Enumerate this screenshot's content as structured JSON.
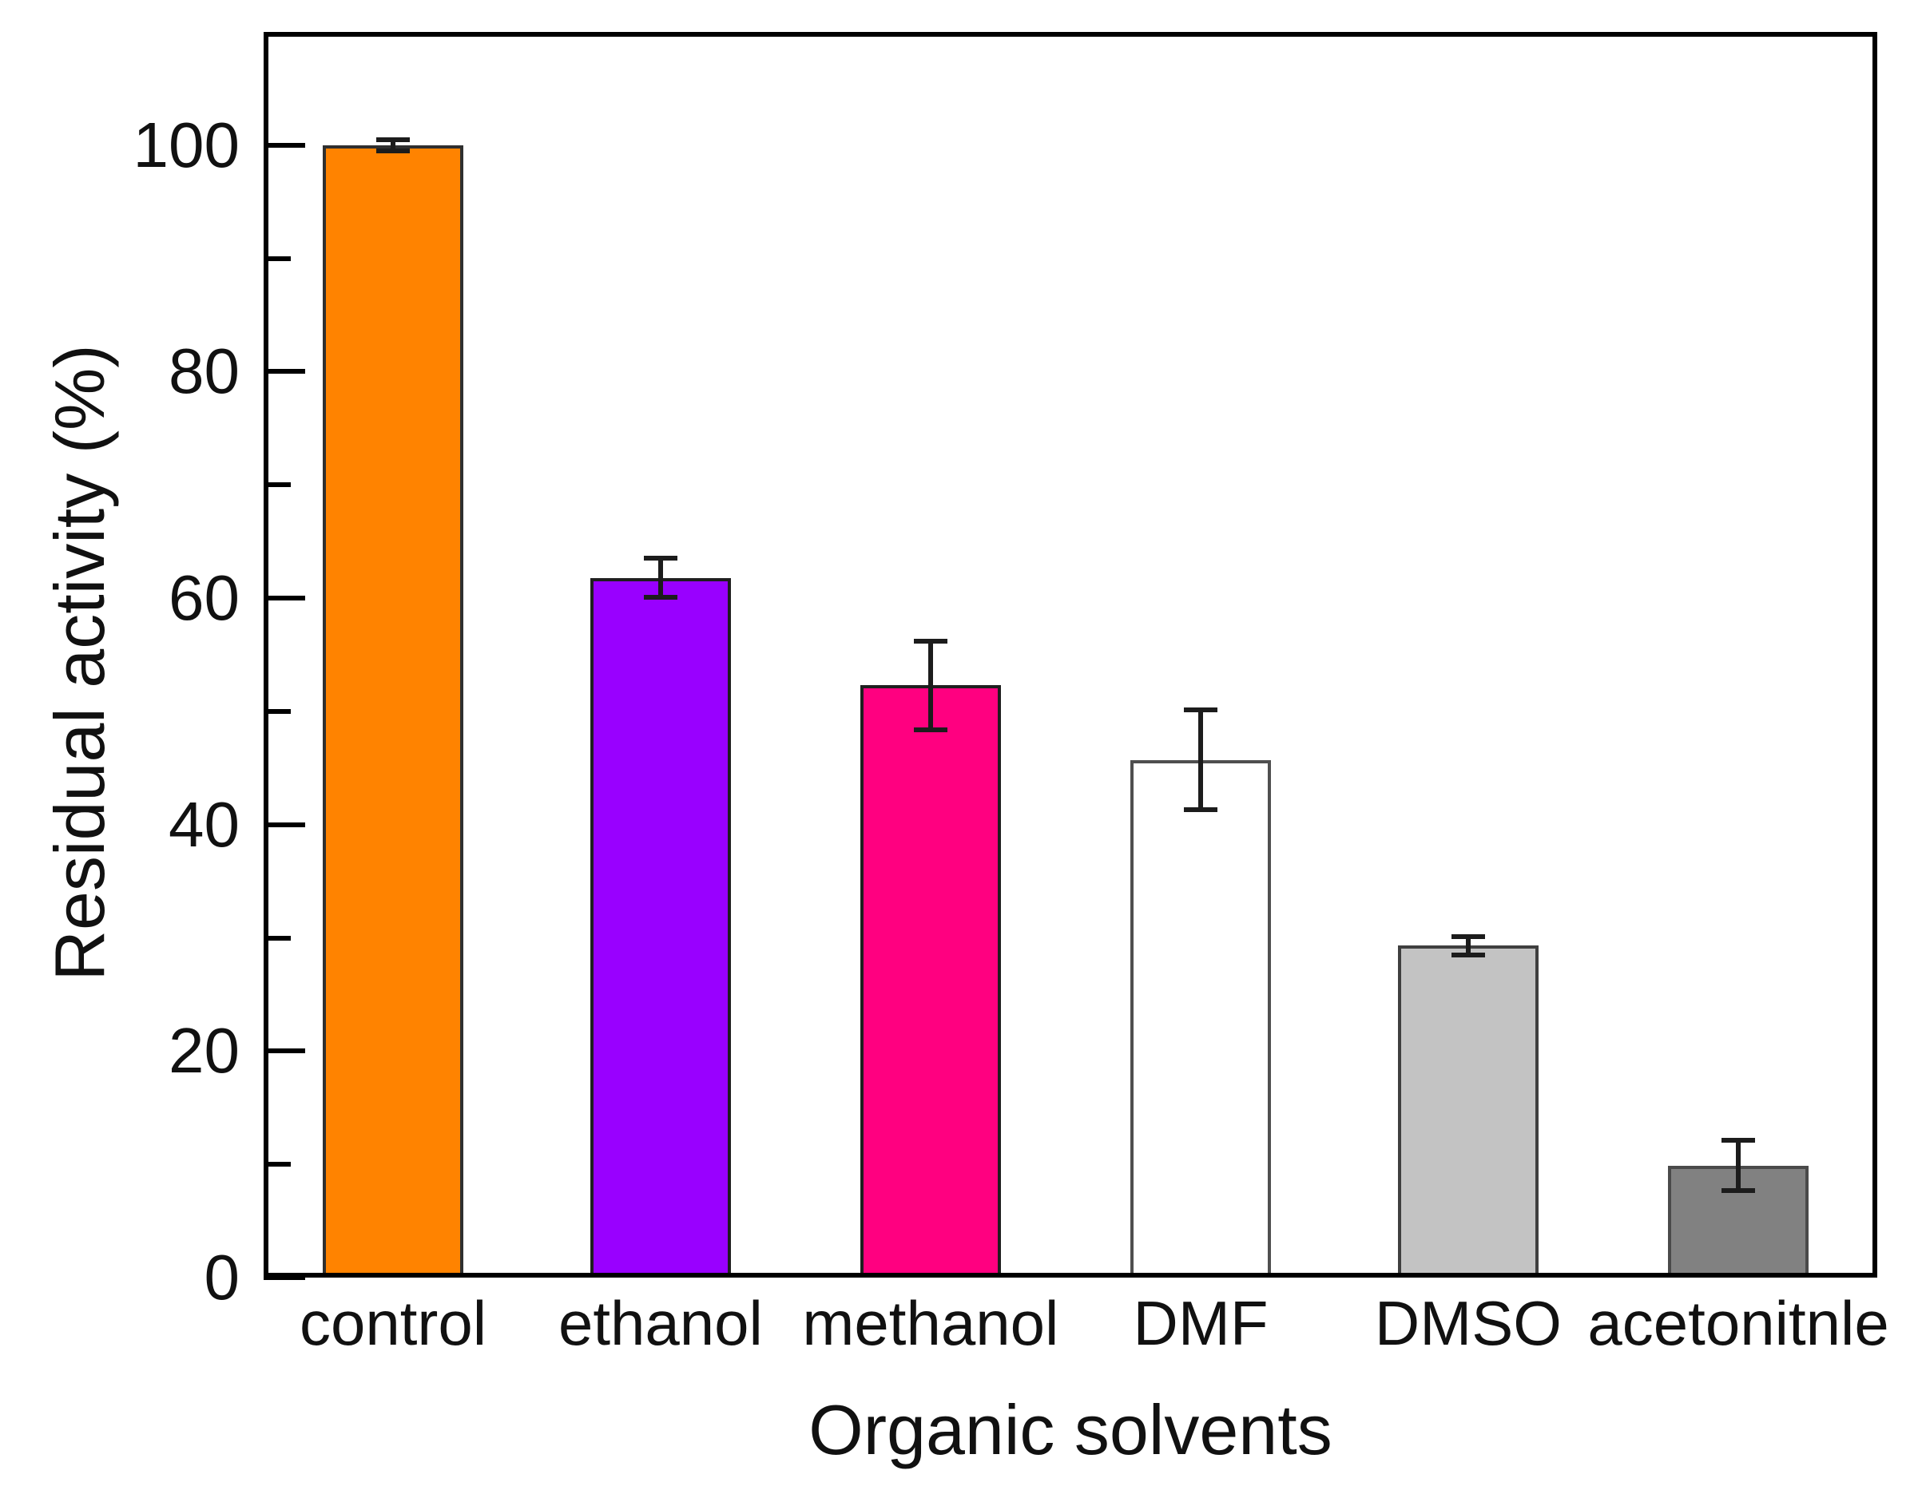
{
  "chart_data": {
    "type": "bar",
    "title": "",
    "xlabel": "Organic solvents",
    "ylabel": "Residual activity (%)",
    "categories": [
      "control",
      "ethanol",
      "methanol",
      "DMF",
      "DMSO",
      "acetonitnle"
    ],
    "values": [
      100.0,
      61.8,
      52.3,
      45.7,
      29.3,
      9.9
    ],
    "error_bars": [
      0.5,
      1.7,
      3.9,
      4.4,
      0.8,
      2.2
    ],
    "bar_colors": [
      "#FF8300",
      "#9900FF",
      "#FF0080",
      "#FFFFFF",
      "#C3C3C3",
      "#818181"
    ],
    "bar_edge_colors": [
      "#2f2f2f",
      "#1f1f1f",
      "#1f1f1f",
      "#4f4f4f",
      "#3f3f3f",
      "#4a4a4a"
    ],
    "error_bar_color": "#1c1c1c",
    "axis_color": "#000000",
    "text_color": "#111111",
    "ylim": [
      0,
      110
    ],
    "y_major_ticks": [
      0,
      20,
      40,
      60,
      80,
      100
    ],
    "y_minor_ticks": [
      10,
      30,
      50,
      70,
      90
    ],
    "grid": "off",
    "legend": "none"
  }
}
